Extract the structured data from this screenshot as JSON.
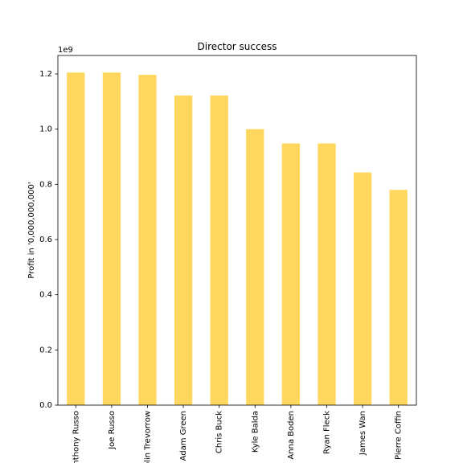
{
  "chart_data": {
    "type": "bar",
    "title": "Director success",
    "xlabel": "",
    "ylabel": "Profit in '0,000,000,000'",
    "y_offset_label": "1e9",
    "categories": [
      "Anthony Russo",
      "Joe Russo",
      "Colin Trevorrow",
      "Adam Green",
      "Chris Buck",
      "Kyle Balda",
      "Anna Boden",
      "Ryan Fleck",
      "James Wan",
      "Pierre Coffin"
    ],
    "values": [
      1.205,
      1.205,
      1.197,
      1.122,
      1.122,
      1.0,
      0.948,
      0.948,
      0.843,
      0.78
    ],
    "value_scale": 1000000000,
    "ylim": [
      0,
      1.267
    ],
    "yticks": [
      0.0,
      0.2,
      0.4,
      0.6,
      0.8,
      1.0,
      1.2
    ],
    "ytick_labels": [
      "0.0",
      "0.2",
      "0.4",
      "0.6",
      "0.8",
      "1.0",
      "1.2"
    ],
    "grid": false,
    "colors": {
      "bar": "#ffd75e",
      "axis": "#000000",
      "background": "#ffffff"
    }
  }
}
